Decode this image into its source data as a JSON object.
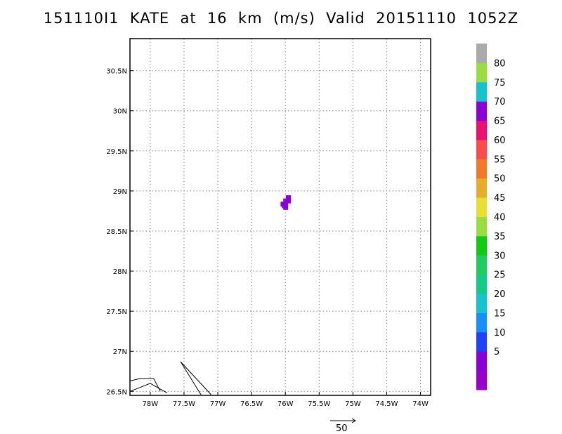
{
  "title": "151110I1  KATE  at  16  km  (m/s)  Valid  20151110  1052Z",
  "map": {
    "lon_range": [
      -78.3,
      -73.85
    ],
    "lat_range": [
      26.45,
      30.9
    ],
    "lon_ticks": [
      {
        "value": -78.0,
        "label": "78W"
      },
      {
        "value": -77.5,
        "label": "77.5W"
      },
      {
        "value": -77.0,
        "label": "77W"
      },
      {
        "value": -76.5,
        "label": "76.5W"
      },
      {
        "value": -76.0,
        "label": "76W"
      },
      {
        "value": -75.5,
        "label": "75.5W"
      },
      {
        "value": -75.0,
        "label": "75W"
      },
      {
        "value": -74.5,
        "label": "74.5W"
      },
      {
        "value": -74.0,
        "label": "74W"
      }
    ],
    "lat_ticks": [
      {
        "value": 26.5,
        "label": "26.5N"
      },
      {
        "value": 27.0,
        "label": "27N"
      },
      {
        "value": 27.5,
        "label": "27.5N"
      },
      {
        "value": 28.0,
        "label": "28N"
      },
      {
        "value": 28.5,
        "label": "28.5N"
      },
      {
        "value": 29.0,
        "label": "29N"
      },
      {
        "value": 29.5,
        "label": "29.5N"
      },
      {
        "value": 30.0,
        "label": "30N"
      },
      {
        "value": 30.5,
        "label": "30.5N"
      }
    ],
    "grid": "dotted",
    "coastlines": [
      [
        [
          -78.3,
          26.63
        ],
        [
          -78.15,
          26.66
        ],
        [
          -77.95,
          26.66
        ],
        [
          -77.85,
          26.5
        ]
      ],
      [
        [
          -78.3,
          26.5
        ],
        [
          -78.0,
          26.6
        ],
        [
          -77.75,
          26.48
        ]
      ],
      [
        [
          -77.55,
          26.87
        ],
        [
          -77.25,
          26.46
        ]
      ],
      [
        [
          -77.55,
          26.87
        ],
        [
          -77.1,
          26.46
        ]
      ]
    ],
    "wind_pixels": [
      {
        "lon": -76.04,
        "lat": 28.84,
        "speed": 5
      },
      {
        "lon": -76.0,
        "lat": 28.84,
        "speed": 5
      },
      {
        "lon": -76.0,
        "lat": 28.88,
        "speed": 5
      },
      {
        "lon": -76.0,
        "lat": 28.8,
        "speed": 5
      },
      {
        "lon": -75.96,
        "lat": 28.88,
        "speed": 5
      },
      {
        "lon": -75.96,
        "lat": 28.92,
        "speed": 5
      },
      {
        "lon": -76.02,
        "lat": 28.82,
        "speed": 5
      }
    ]
  },
  "colorbar": {
    "levels": [
      {
        "color": "#9900cc",
        "label": ""
      },
      {
        "color": "#8a00d6",
        "label": "5"
      },
      {
        "color": "#2040ff",
        "label": "10"
      },
      {
        "color": "#1490ff",
        "label": "15"
      },
      {
        "color": "#15c4cc",
        "label": "20"
      },
      {
        "color": "#10cc88",
        "label": "25"
      },
      {
        "color": "#1fcc5e",
        "label": "30"
      },
      {
        "color": "#0fcc10",
        "label": "35"
      },
      {
        "color": "#99dd40",
        "label": "40"
      },
      {
        "color": "#e8e030",
        "label": "45"
      },
      {
        "color": "#e6ad2a",
        "label": "50"
      },
      {
        "color": "#ee7a2a",
        "label": "55"
      },
      {
        "color": "#ff4a4a",
        "label": "60"
      },
      {
        "color": "#ee1070",
        "label": "65"
      },
      {
        "color": "#8a00d6",
        "label": "70"
      },
      {
        "color": "#14c4cc",
        "label": "75"
      },
      {
        "color": "#99dd40",
        "label": "80"
      },
      {
        "color": "#aaaaaa",
        "label": ""
      }
    ]
  },
  "vector_key": {
    "label": "50"
  }
}
